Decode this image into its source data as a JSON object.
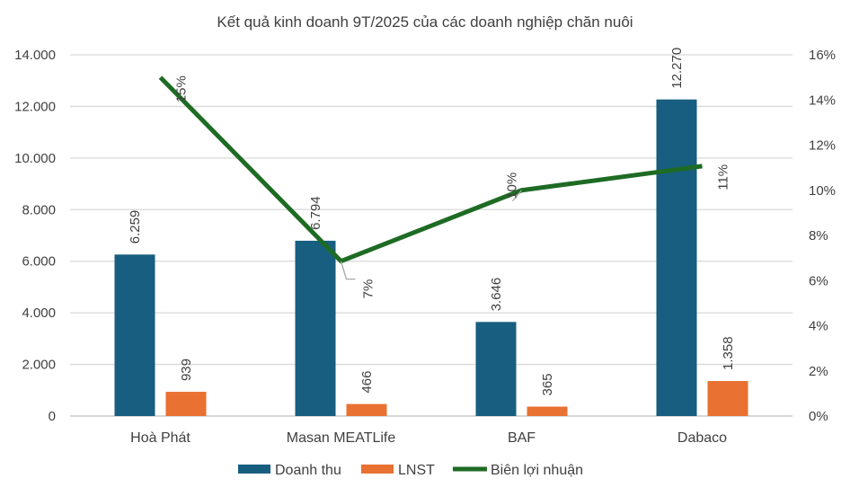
{
  "chart_data": {
    "type": "bar",
    "title": "Kết quả kinh doanh 9T/2025 của các doanh nghiệp chăn nuôi",
    "categories": [
      "Hoà Phát",
      "Masan MEATLife",
      "BAF",
      "Dabaco"
    ],
    "series": [
      {
        "name": "Doanh thu",
        "type": "bar",
        "axis": "left",
        "color": "#175e80",
        "values": [
          6259,
          6794,
          3646,
          12270
        ],
        "labels": [
          "6.259",
          "6.794",
          "3.646",
          "12.270"
        ]
      },
      {
        "name": "LNST",
        "type": "bar",
        "axis": "left",
        "color": "#e97132",
        "values": [
          939,
          466,
          365,
          1358
        ],
        "labels": [
          "939",
          "466",
          "365",
          "1.358"
        ]
      },
      {
        "name": "Biên lợi nhuận",
        "type": "line",
        "axis": "right",
        "color": "#1e6b24",
        "values": [
          15.0,
          6.86,
          10.0,
          11.07
        ],
        "labels": [
          "15%",
          "7%",
          "10%",
          "11%"
        ]
      }
    ],
    "left_axis": {
      "range": [
        0,
        14000
      ],
      "ticks": [
        "0",
        "2.000",
        "4.000",
        "6.000",
        "8.000",
        "10.000",
        "12.000",
        "14.000"
      ]
    },
    "right_axis": {
      "range": [
        0,
        16
      ],
      "ticks": [
        "0%",
        "2%",
        "4%",
        "6%",
        "8%",
        "10%",
        "12%",
        "14%",
        "16%"
      ]
    },
    "grid": true,
    "legend": "bottom"
  }
}
